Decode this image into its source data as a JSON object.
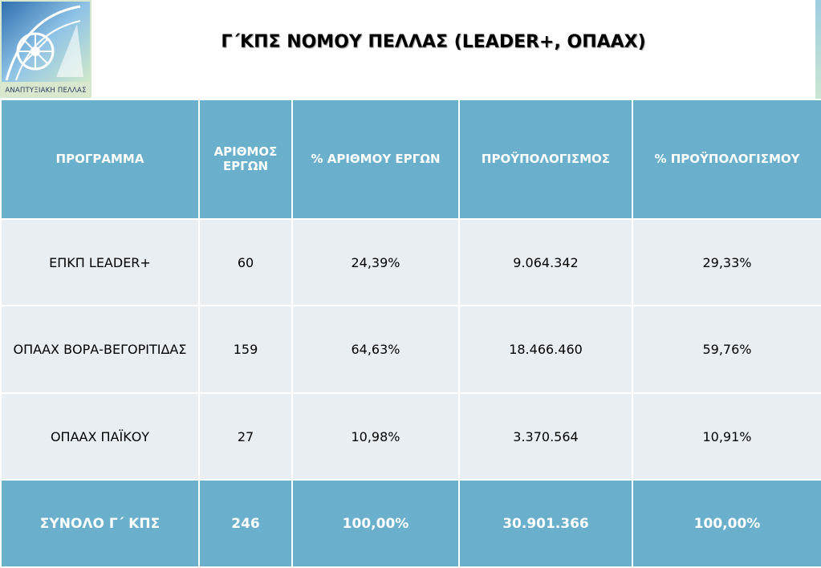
{
  "logo": {
    "caption": "ΑΝΑΠΤΥΞΙΑΚΗ ΠΕΛΛΑΣ"
  },
  "title": "Γ΄ΚΠΣ ΝΟΜΟΥ ΠΕΛΛΑΣ (LEADER+, ΟΠΑΑΧ)",
  "colors": {
    "header_bg": "#6aafcc",
    "row_bg": "#e9eef3",
    "header_text": "#ffffff"
  },
  "table": {
    "headers": [
      "ΠΡΟΓΡΑΜΜΑ",
      "ΑΡΙΘΜΟΣ ΕΡΓΩΝ",
      "% ΑΡΙΘΜΟΥ ΕΡΓΩΝ",
      "ΠΡΟΫΠΟΛΟΓΙΣΜΟΣ",
      "% ΠΡΟΫΠΟΛΟΓΙΣΜΟΥ"
    ],
    "rows": [
      [
        "ΕΠΚΠ LEADER+",
        "60",
        "24,39%",
        "9.064.342",
        "29,33%"
      ],
      [
        "ΟΠΑΑΧ ΒΟΡΑ-ΒΕΓΟΡΙΤΙΔΑΣ",
        "159",
        "64,63%",
        "18.466.460",
        "59,76%"
      ],
      [
        "ΟΠΑΑΧ ΠΑΪΚΟΥ",
        "27",
        "10,98%",
        "3.370.564",
        "10,91%"
      ]
    ],
    "total": [
      "ΣΥΝΟΛΟ Γ΄ ΚΠΣ",
      "246",
      "100,00%",
      "30.901.366",
      "100,00%"
    ]
  }
}
